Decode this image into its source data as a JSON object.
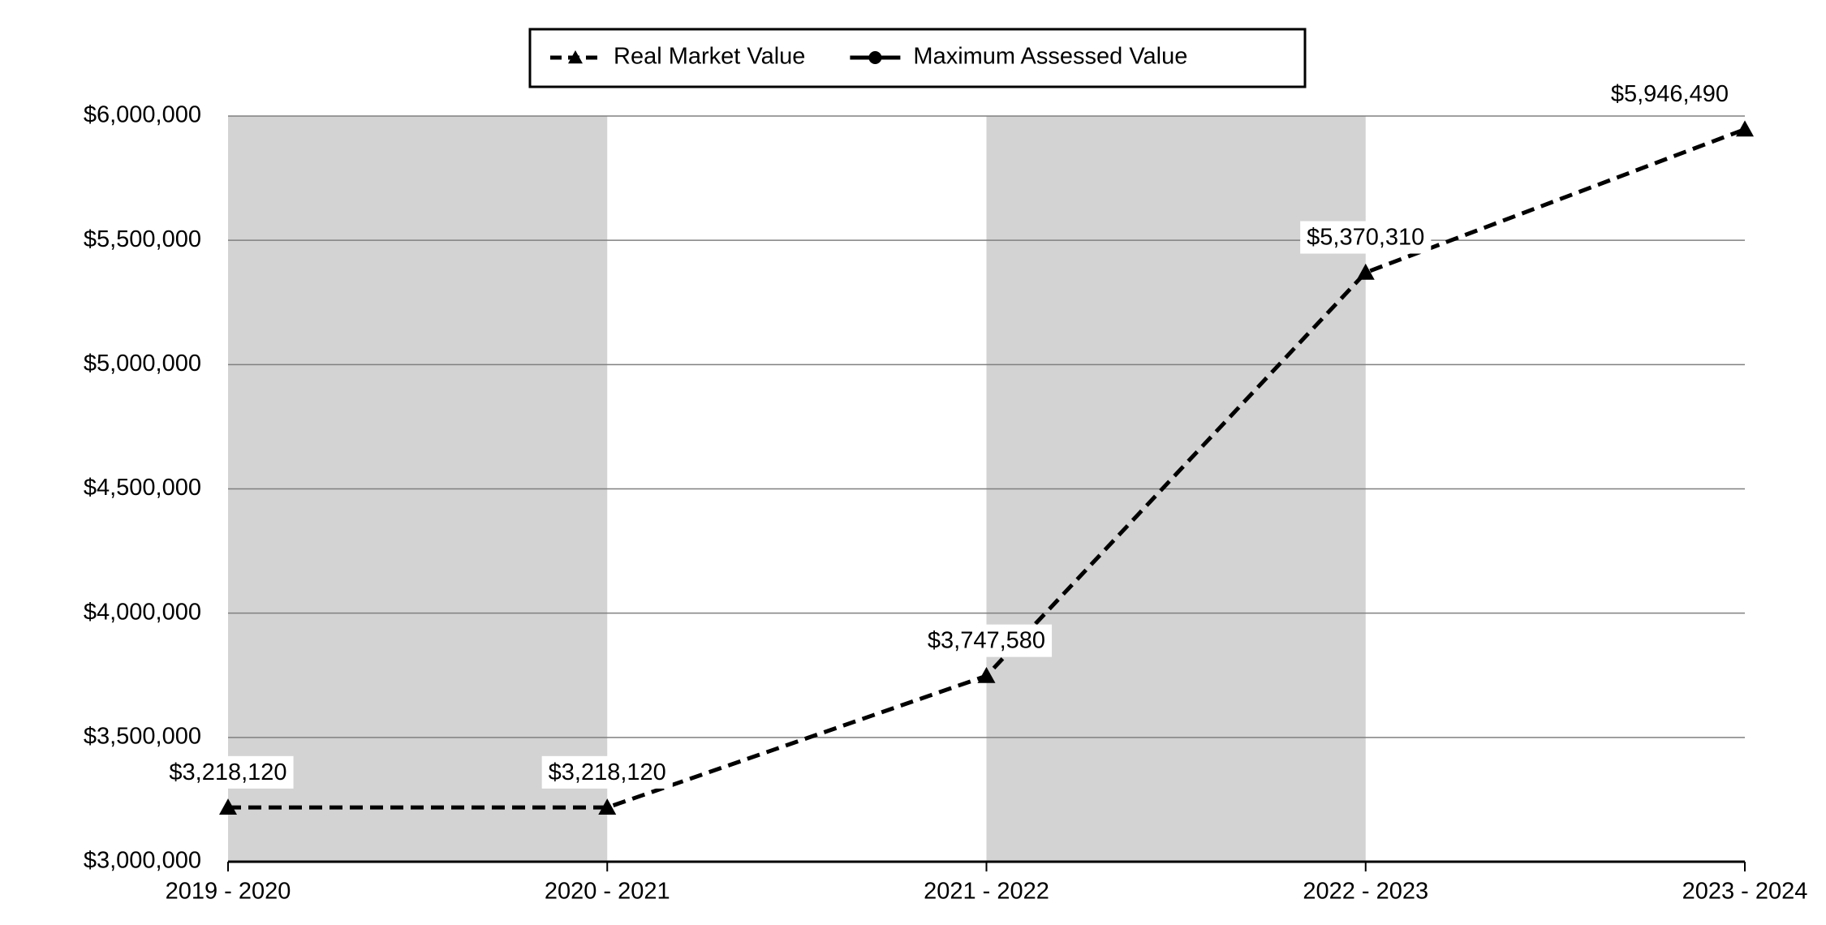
{
  "chart_data": {
    "type": "line",
    "categories": [
      "2019 - 2020",
      "2020 - 2021",
      "2021 - 2022",
      "2022 - 2023",
      "2023 - 2024"
    ],
    "series": [
      {
        "name": "Real Market Value",
        "color": "#000000",
        "dashed": true,
        "marker": "triangle",
        "values": [
          3218120,
          3218120,
          3747580,
          5370310,
          5946490
        ],
        "value_labels": [
          "$3,218,120",
          "$3,218,120",
          "$3,747,580",
          "$5,370,310",
          "$5,946,490"
        ]
      },
      {
        "name": "Maximum Assessed Value",
        "color": "#000000",
        "dashed": false,
        "marker": "circle",
        "values": [
          null,
          null,
          null,
          null,
          null
        ]
      }
    ],
    "ylim": [
      3000000,
      6000000
    ],
    "yticks": [
      {
        "value": 3000000,
        "label": "$3,000,000"
      },
      {
        "value": 3500000,
        "label": "$3,500,000"
      },
      {
        "value": 4000000,
        "label": "$4,000,000"
      },
      {
        "value": 4500000,
        "label": "$4,500,000"
      },
      {
        "value": 5000000,
        "label": "$5,000,000"
      },
      {
        "value": 5500000,
        "label": "$5,500,000"
      },
      {
        "value": 6000000,
        "label": "$6,000,000"
      }
    ],
    "grid": true,
    "legend": "top"
  }
}
